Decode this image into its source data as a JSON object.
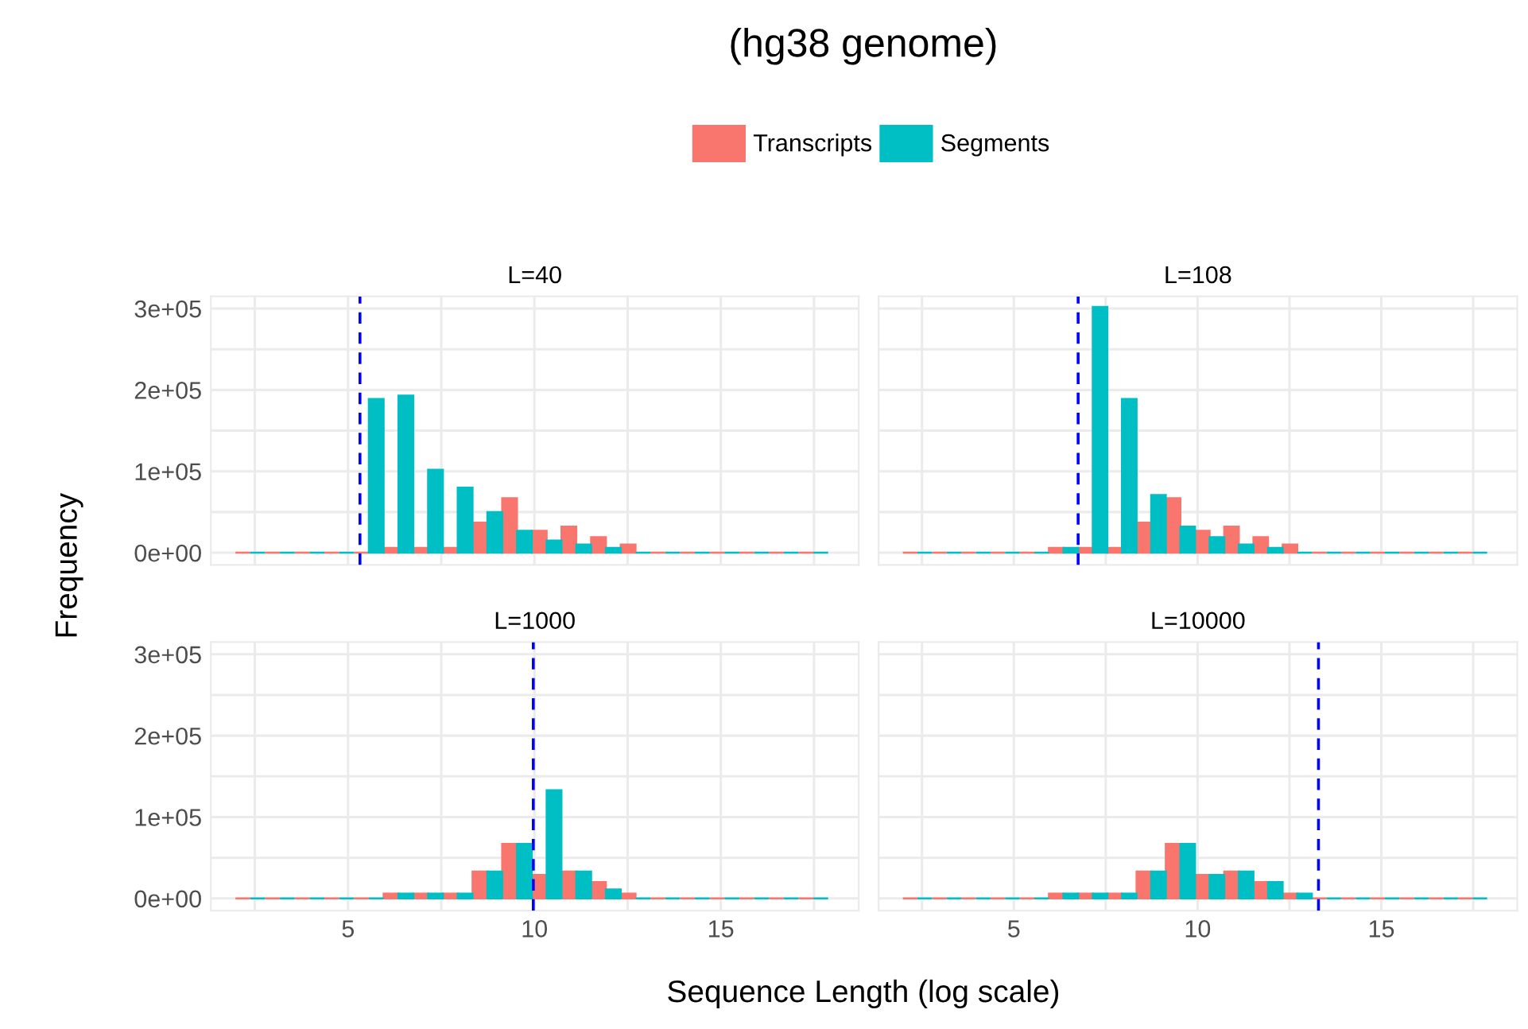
{
  "chart_data": [
    {
      "type": "histogram",
      "title": "L=40",
      "annotations": [
        "(hg38 genome)"
      ],
      "ylabel": "Frequency",
      "legend": "top",
      "bins": [
        1.98,
        2.775,
        3.57,
        4.365,
        5.16,
        5.955,
        6.75,
        7.545,
        8.34,
        9.135,
        9.93,
        10.725,
        11.52,
        12.315,
        13.11,
        13.905,
        14.7,
        15.495,
        16.29,
        17.085,
        17.88
      ],
      "series": [
        {
          "name": "Transcripts",
          "color": "#f8766d",
          "values": [
            0,
            0,
            0,
            0,
            0,
            6000,
            6000,
            6000,
            37000,
            67000,
            27000,
            32000,
            19000,
            10000,
            0,
            0,
            0,
            0,
            0,
            0
          ]
        },
        {
          "name": "Segments",
          "color": "#00bfc4",
          "values": [
            0,
            0,
            0,
            0,
            189000,
            193000,
            102000,
            80000,
            50000,
            27000,
            15000,
            10000,
            6000,
            0,
            0,
            0,
            0,
            0,
            0,
            0
          ]
        }
      ],
      "ref_lines": [
        {
          "axis": "x",
          "value": 5.32,
          "color": "#0000ff",
          "line_style": "dashed"
        }
      ],
      "xlim": [
        1.32,
        18.7
      ],
      "ylim": [
        -15000,
        315000
      ],
      "xticks": [
        {
          "value": 2.5,
          "label": null
        },
        5,
        {
          "value": 7.5,
          "label": null
        },
        10,
        {
          "value": 12.5,
          "label": null
        },
        15,
        {
          "value": 17.5,
          "label": null
        }
      ],
      "yticks": [
        {
          "value": 0,
          "label": "0e+00"
        },
        {
          "value": 50000,
          "label": null
        },
        {
          "value": 100000,
          "label": "1e+05"
        },
        {
          "value": 150000,
          "label": null
        },
        {
          "value": 200000,
          "label": "2e+05"
        },
        {
          "value": 250000,
          "label": null
        },
        {
          "value": 300000,
          "label": "3e+05"
        }
      ],
      "grid": true,
      "tick_labels": "y"
    },
    {
      "type": "histogram",
      "title": "L=108",
      "bins": [
        1.98,
        2.775,
        3.57,
        4.365,
        5.16,
        5.955,
        6.75,
        7.545,
        8.34,
        9.135,
        9.93,
        10.725,
        11.52,
        12.315,
        13.11,
        13.905,
        14.7,
        15.495,
        16.29,
        17.085,
        17.88
      ],
      "series": [
        {
          "color": "#f8766d",
          "values": [
            0,
            0,
            0,
            0,
            0,
            6000,
            6000,
            6000,
            37000,
            67000,
            27000,
            32000,
            19000,
            10000,
            0,
            0,
            0,
            0,
            0,
            0
          ]
        },
        {
          "color": "#00bfc4",
          "values": [
            0,
            0,
            0,
            0,
            0,
            6000,
            302000,
            189000,
            71000,
            32000,
            19000,
            10000,
            6000,
            0,
            0,
            0,
            0,
            0,
            0,
            0
          ]
        }
      ],
      "ref_lines": [
        {
          "axis": "x",
          "value": 6.75,
          "color": "#0000ff",
          "line_style": "dashed"
        }
      ],
      "xlim": [
        1.32,
        18.7
      ],
      "ylim": [
        -15000,
        315000
      ],
      "xticks": [
        {
          "value": 2.5,
          "label": null
        },
        5,
        {
          "value": 7.5,
          "label": null
        },
        10,
        {
          "value": 12.5,
          "label": null
        },
        15,
        {
          "value": 17.5,
          "label": null
        }
      ],
      "yticks": [
        {
          "value": 0,
          "label": null
        },
        {
          "value": 50000,
          "label": null
        },
        {
          "value": 100000,
          "label": null
        },
        {
          "value": 150000,
          "label": null
        },
        {
          "value": 200000,
          "label": null
        },
        {
          "value": 250000,
          "label": null
        },
        {
          "value": 300000,
          "label": null
        }
      ],
      "grid": true,
      "tick_labels": false
    },
    {
      "type": "histogram",
      "title": "L=1000",
      "xlabel": "Sequence Length (log scale)",
      "bins": [
        1.98,
        2.775,
        3.57,
        4.365,
        5.16,
        5.955,
        6.75,
        7.545,
        8.34,
        9.135,
        9.93,
        10.725,
        11.52,
        12.315,
        13.11,
        13.905,
        14.7,
        15.495,
        16.29,
        17.085,
        17.88
      ],
      "series": [
        {
          "color": "#f8766d",
          "values": [
            0,
            0,
            0,
            0,
            0,
            6000,
            6000,
            6000,
            33000,
            67000,
            29000,
            33000,
            20000,
            6000,
            0,
            0,
            0,
            0,
            0,
            0
          ]
        },
        {
          "color": "#00bfc4",
          "values": [
            0,
            0,
            0,
            0,
            0,
            6000,
            6000,
            6000,
            33000,
            67000,
            133000,
            33000,
            11000,
            0,
            0,
            0,
            0,
            0,
            0,
            0
          ]
        }
      ],
      "ref_lines": [
        {
          "axis": "x",
          "value": 9.97,
          "color": "#0000ff",
          "line_style": "dashed"
        }
      ],
      "xlim": [
        1.32,
        18.7
      ],
      "ylim": [
        -15000,
        315000
      ],
      "xticks": [
        {
          "value": 2.5,
          "label": null
        },
        5,
        {
          "value": 7.5,
          "label": null
        },
        10,
        {
          "value": 12.5,
          "label": null
        },
        15,
        {
          "value": 17.5,
          "label": null
        }
      ],
      "yticks": [
        {
          "value": 0,
          "label": "0e+00"
        },
        {
          "value": 50000,
          "label": null
        },
        {
          "value": 100000,
          "label": "1e+05"
        },
        {
          "value": 150000,
          "label": null
        },
        {
          "value": 200000,
          "label": "2e+05"
        },
        {
          "value": 250000,
          "label": null
        },
        {
          "value": 300000,
          "label": "3e+05"
        }
      ],
      "grid": true
    },
    {
      "type": "histogram",
      "title": "L=10000",
      "bins": [
        1.98,
        2.775,
        3.57,
        4.365,
        5.16,
        5.955,
        6.75,
        7.545,
        8.34,
        9.135,
        9.93,
        10.725,
        11.52,
        12.315,
        13.11,
        13.905,
        14.7,
        15.495,
        16.29,
        17.085,
        17.88
      ],
      "series": [
        {
          "color": "#f8766d",
          "values": [
            0,
            0,
            0,
            0,
            0,
            6000,
            6000,
            6000,
            33000,
            67000,
            29000,
            33000,
            20000,
            6000,
            0,
            0,
            0,
            0,
            0,
            0
          ]
        },
        {
          "color": "#00bfc4",
          "values": [
            0,
            0,
            0,
            0,
            0,
            6000,
            6000,
            6000,
            33000,
            67000,
            29000,
            33000,
            20000,
            6000,
            0,
            0,
            0,
            0,
            0,
            0
          ]
        }
      ],
      "ref_lines": [
        {
          "axis": "x",
          "value": 13.29,
          "color": "#0000ff",
          "line_style": "dashed"
        }
      ],
      "xlim": [
        1.32,
        18.7
      ],
      "ylim": [
        -15000,
        315000
      ],
      "xticks": [
        {
          "value": 2.5,
          "label": null
        },
        5,
        {
          "value": 7.5,
          "label": null
        },
        10,
        {
          "value": 12.5,
          "label": null
        },
        15,
        {
          "value": 17.5,
          "label": null
        }
      ],
      "yticks": [
        {
          "value": 0,
          "label": null
        },
        {
          "value": 50000,
          "label": null
        },
        {
          "value": 100000,
          "label": null
        },
        {
          "value": 150000,
          "label": null
        },
        {
          "value": 200000,
          "label": null
        },
        {
          "value": 250000,
          "label": null
        },
        {
          "value": 300000,
          "label": null
        }
      ],
      "grid": true,
      "tick_labels": "x"
    }
  ]
}
